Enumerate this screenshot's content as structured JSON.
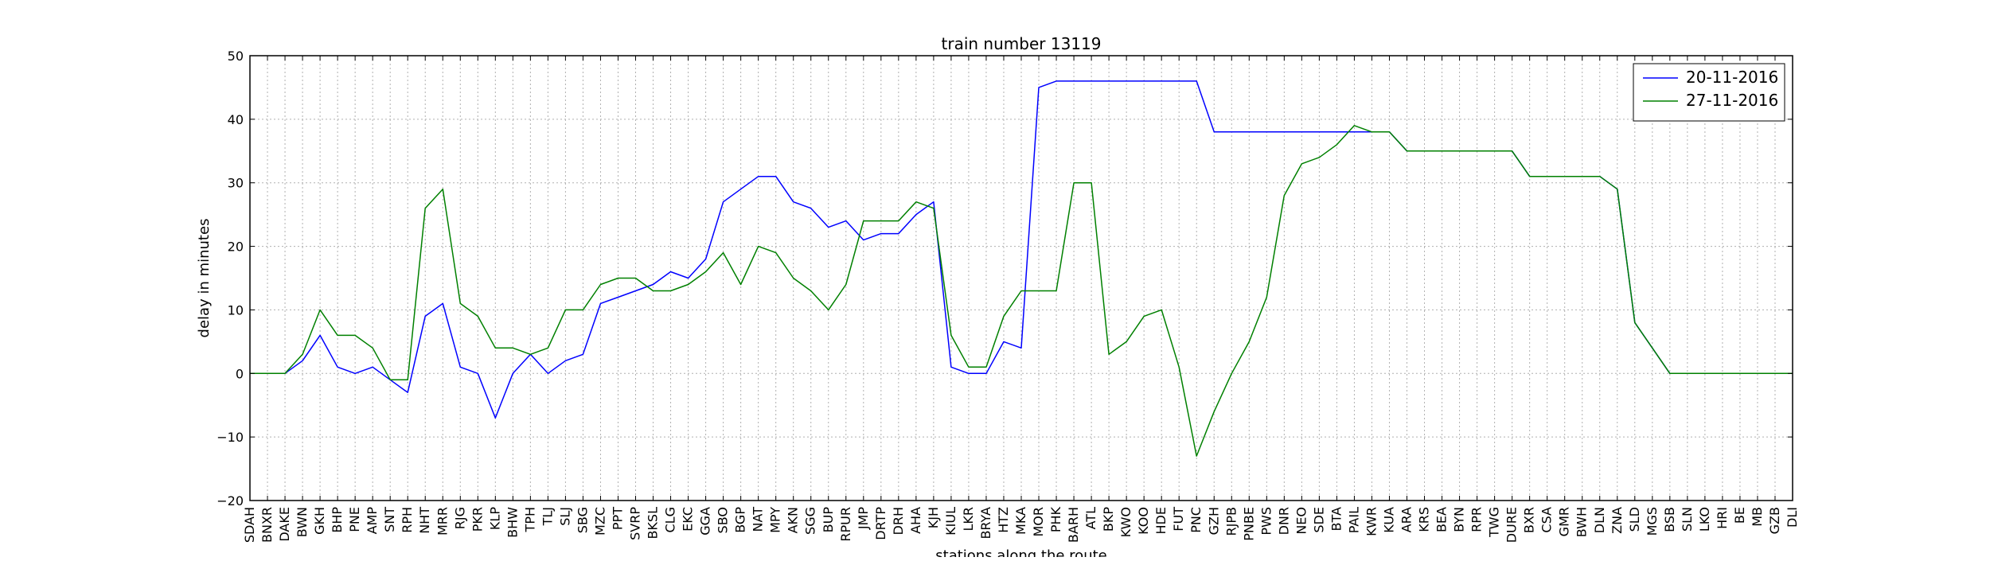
{
  "chart_data": {
    "type": "line",
    "title": "train number 13119",
    "xlabel": "stations along the route",
    "ylabel": "delay in minutes",
    "ylim": [
      -20,
      50
    ],
    "yticks": [
      -20,
      -10,
      0,
      10,
      20,
      30,
      40,
      50
    ],
    "ytick_labels": [
      "−20",
      "−10",
      "0",
      "10",
      "20",
      "30",
      "40",
      "50"
    ],
    "grid": true,
    "legend_position": "top-right",
    "categories": [
      "SDAH",
      "BNXR",
      "DAKE",
      "BWN",
      "GKH",
      "BHP",
      "PNE",
      "AMP",
      "SNT",
      "RPH",
      "NHT",
      "MRR",
      "RJG",
      "PKR",
      "KLP",
      "BHW",
      "TPH",
      "TLJ",
      "SLJ",
      "SBG",
      "MZC",
      "PPT",
      "SVRP",
      "BKSL",
      "CLG",
      "EKC",
      "GGA",
      "SBO",
      "BGP",
      "NAT",
      "MPY",
      "AKN",
      "SGG",
      "BUP",
      "RPUR",
      "JMP",
      "DRTP",
      "DRH",
      "AHA",
      "KJH",
      "KIUL",
      "LKR",
      "BRYA",
      "HTZ",
      "MKA",
      "MOR",
      "PHK",
      "BARH",
      "ATL",
      "BKP",
      "KWO",
      "KOO",
      "HDE",
      "FUT",
      "PNC",
      "GZH",
      "RJPB",
      "PNBE",
      "PWS",
      "DNR",
      "NEO",
      "SDE",
      "BTA",
      "PAIL",
      "KWR",
      "KUA",
      "ARA",
      "KRS",
      "BEA",
      "BYN",
      "RPR",
      "TWG",
      "DURE",
      "BXR",
      "CSA",
      "GMR",
      "BWH",
      "DLN",
      "ZNA",
      "SLD",
      "MGS",
      "BSB",
      "SLN",
      "LKO",
      "HRI",
      "BE",
      "MB",
      "GZB",
      "DLI"
    ],
    "series": [
      {
        "name": "20-11-2016",
        "color": "#0000ff",
        "values": [
          0,
          0,
          0,
          2,
          6,
          1,
          0,
          1,
          -1,
          -3,
          9,
          11,
          1,
          0,
          -7,
          0,
          3,
          0,
          2,
          3,
          11,
          12,
          13,
          14,
          16,
          15,
          18,
          27,
          29,
          31,
          31,
          27,
          26,
          23,
          24,
          21,
          22,
          22,
          25,
          27,
          1,
          0,
          0,
          5,
          4,
          45,
          46,
          46,
          46,
          46,
          46,
          46,
          46,
          46,
          46,
          38,
          38,
          38,
          38,
          38,
          38,
          38,
          38,
          38,
          38,
          38,
          35,
          35,
          35,
          35,
          35,
          35,
          35,
          31,
          31,
          31,
          31,
          31,
          29,
          8,
          4,
          0,
          0,
          0,
          0,
          0,
          0,
          0,
          0
        ]
      },
      {
        "name": "27-11-2016",
        "color": "#008000",
        "values": [
          0,
          0,
          0,
          3,
          10,
          6,
          6,
          4,
          -1,
          -1,
          26,
          29,
          11,
          9,
          4,
          4,
          3,
          4,
          10,
          10,
          14,
          15,
          15,
          13,
          13,
          14,
          16,
          19,
          14,
          20,
          19,
          15,
          13,
          10,
          14,
          24,
          24,
          24,
          27,
          26,
          6,
          1,
          1,
          9,
          13,
          13,
          13,
          30,
          30,
          3,
          5,
          9,
          10,
          1,
          -13,
          -6,
          0,
          5,
          12,
          28,
          33,
          34,
          36,
          39,
          38,
          38,
          35,
          35,
          35,
          35,
          35,
          35,
          35,
          31,
          31,
          31,
          31,
          31,
          29,
          8,
          4,
          0,
          0,
          0,
          0,
          0,
          0,
          0,
          0
        ]
      }
    ]
  }
}
